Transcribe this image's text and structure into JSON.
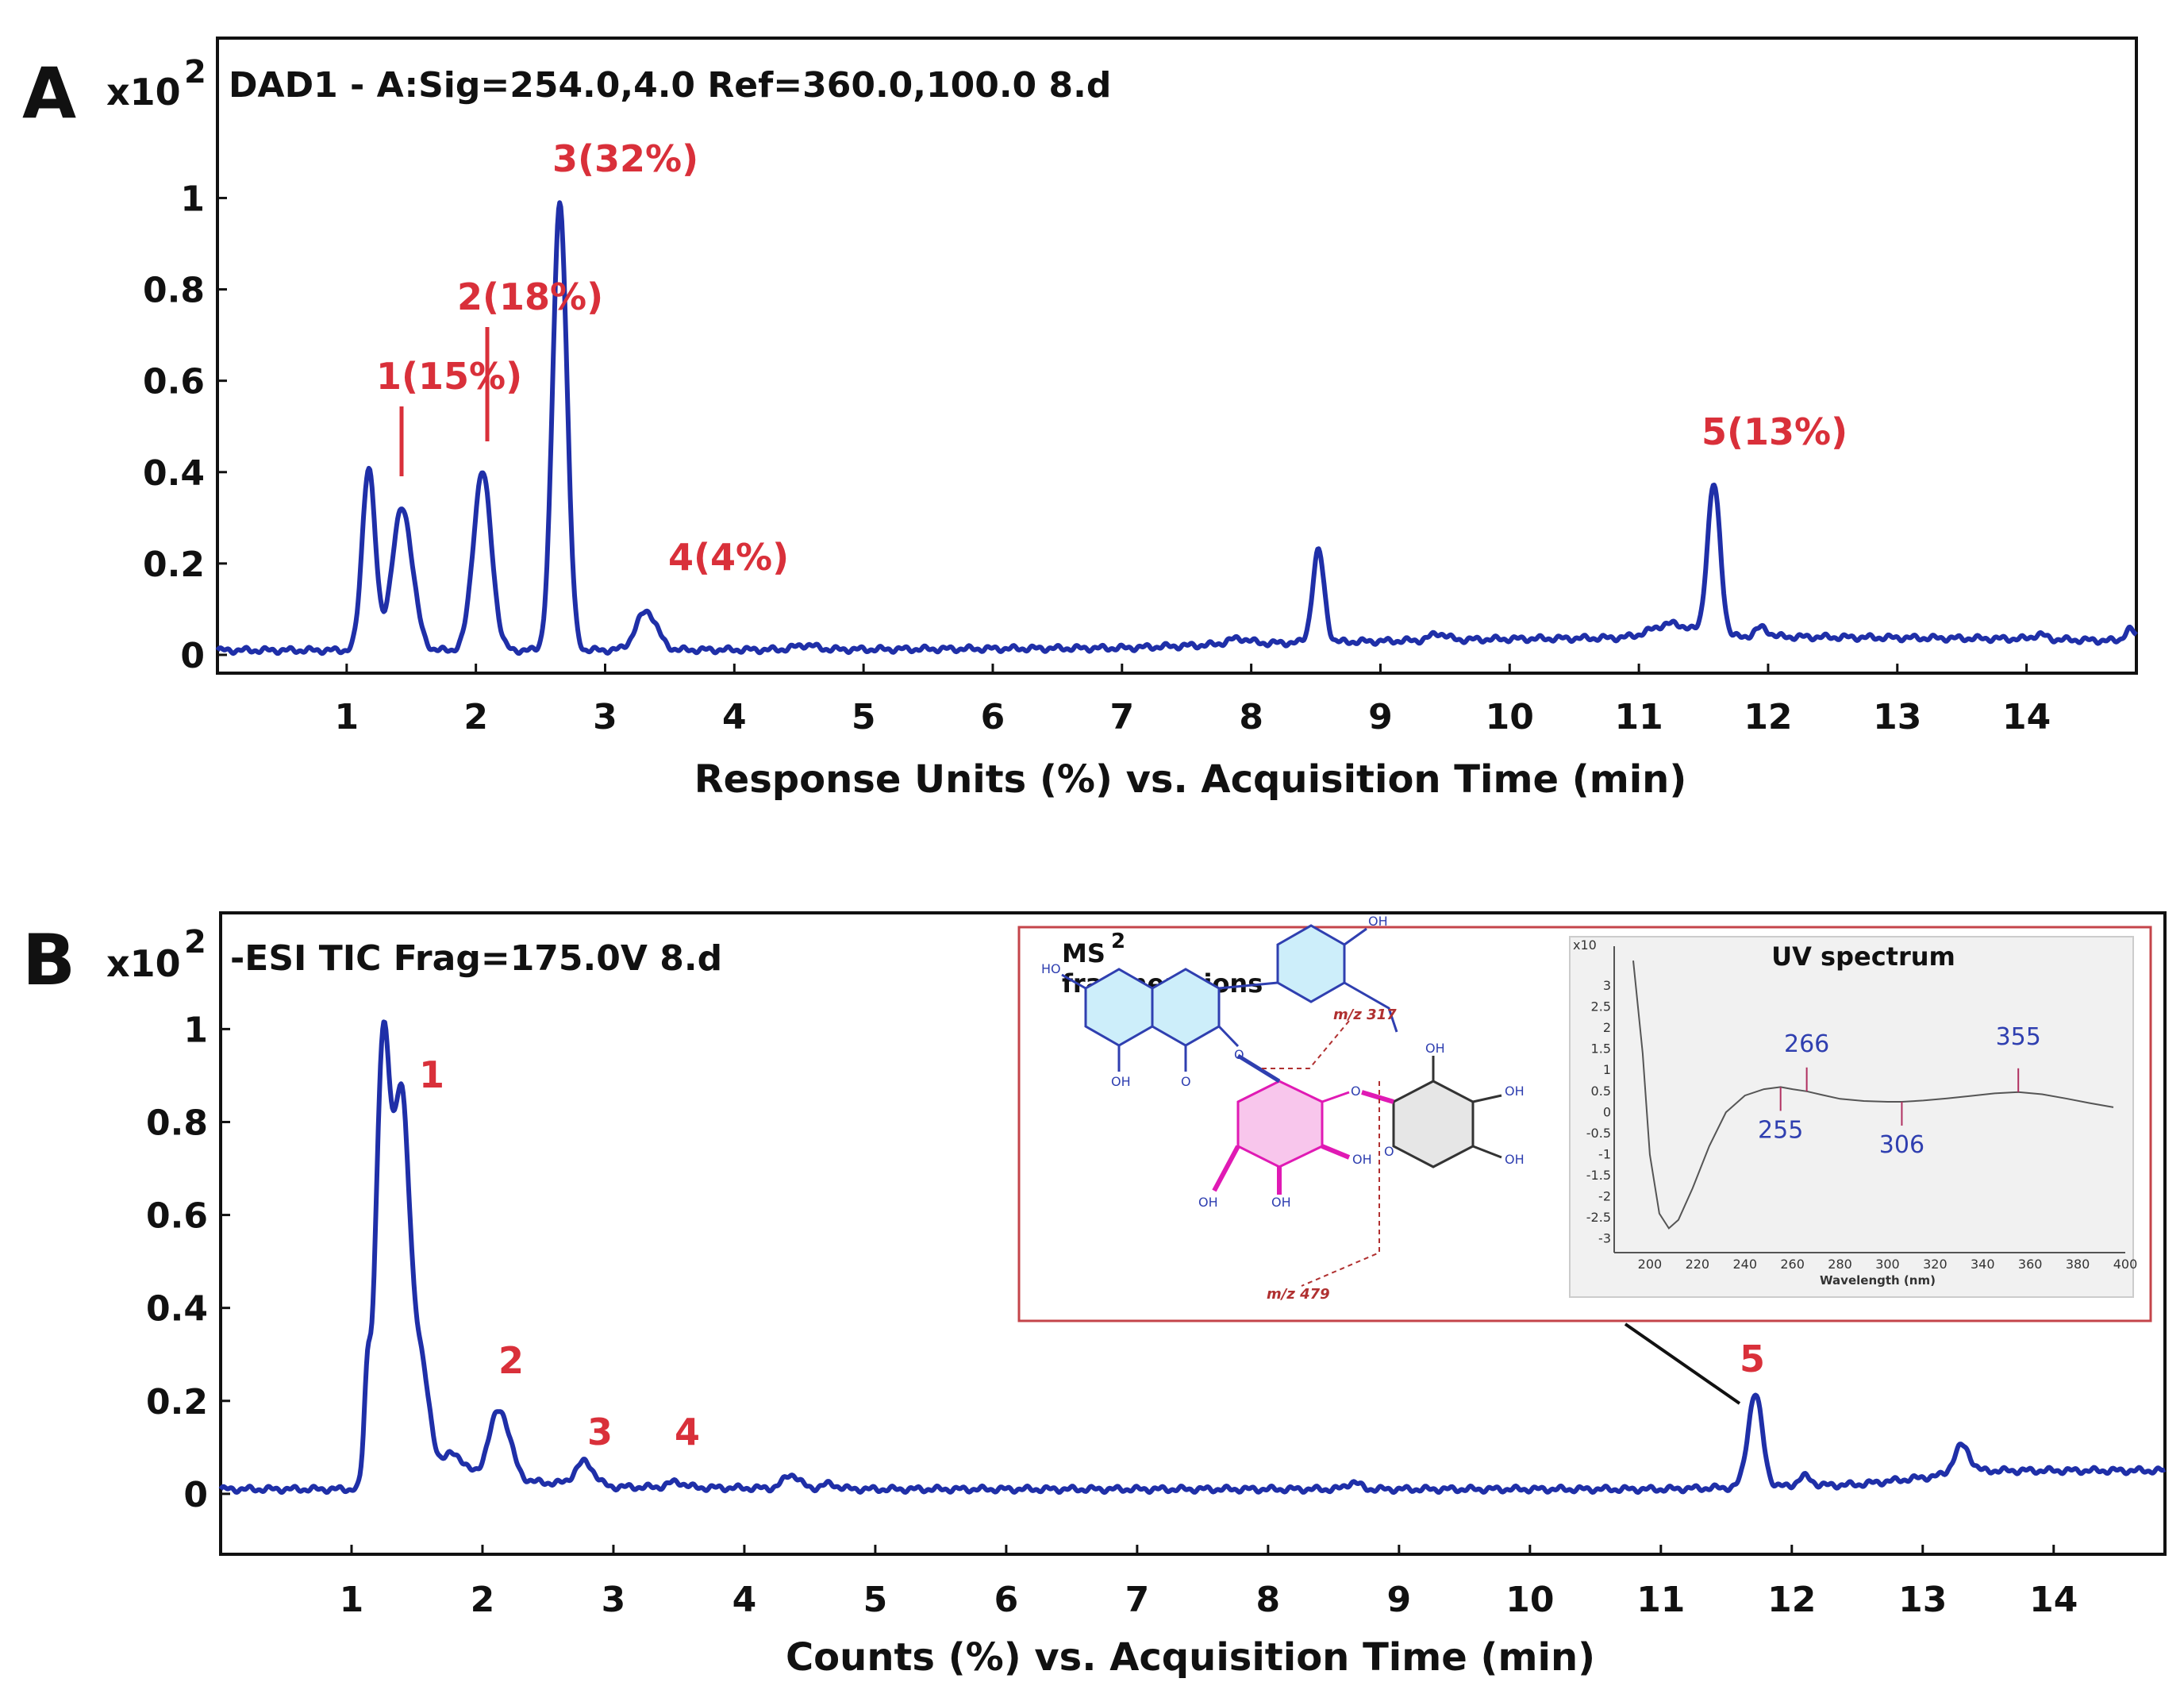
{
  "chart_data": [
    {
      "type": "line",
      "panel": "A",
      "title": "DAD1 - A:Sig=254.0,4.0  Ref=360.0,100.0 8.d",
      "scale_label": "x10",
      "scale_exponent": "2",
      "xlabel": "Response Units (%) vs. Acquisition Time (min)",
      "ylabel": "",
      "xlim": [
        0,
        14.85
      ],
      "ylim": [
        -0.04,
        1.35
      ],
      "x_ticks": [
        "1",
        "2",
        "3",
        "4",
        "5",
        "6",
        "7",
        "8",
        "9",
        "10",
        "11",
        "12",
        "13",
        "14"
      ],
      "y_ticks": [
        "0",
        "0.2",
        "0.4",
        "0.6",
        "0.8",
        "1"
      ],
      "y_tick_values": [
        0,
        0.2,
        0.4,
        0.6,
        0.8,
        1
      ],
      "baseline": {
        "x": [
          0,
          2.5,
          5,
          7,
          8,
          10,
          12,
          14,
          14.85
        ],
        "y": [
          0.01,
          0.01,
          0.012,
          0.015,
          0.025,
          0.035,
          0.04,
          0.035,
          0.03
        ]
      },
      "peaks": [
        {
          "x": 1.17,
          "h": 0.4,
          "w": 0.05
        },
        {
          "x": 1.43,
          "h": 0.31,
          "w": 0.08
        },
        {
          "x": 2.05,
          "h": 0.39,
          "w": 0.07
        },
        {
          "x": 2.65,
          "h": 0.98,
          "w": 0.055
        },
        {
          "x": 3.32,
          "h": 0.085,
          "w": 0.08
        },
        {
          "x": 4.55,
          "h": 0.01,
          "w": 0.08
        },
        {
          "x": 7.9,
          "h": 0.012,
          "w": 0.08
        },
        {
          "x": 8.52,
          "h": 0.2,
          "w": 0.045
        },
        {
          "x": 9.45,
          "h": 0.015,
          "w": 0.06
        },
        {
          "x": 11.25,
          "h": 0.03,
          "w": 0.15
        },
        {
          "x": 11.58,
          "h": 0.33,
          "w": 0.05
        },
        {
          "x": 11.95,
          "h": 0.02,
          "w": 0.05
        },
        {
          "x": 14.1,
          "h": 0.01,
          "w": 0.05
        },
        {
          "x": 14.8,
          "h": 0.025,
          "w": 0.04
        }
      ],
      "annotations": [
        {
          "label": "1(15%)",
          "x": 1.43
        },
        {
          "label": "2(18%)",
          "x": 2.05
        },
        {
          "label": "3(32%)",
          "x": 2.65
        },
        {
          "label": "4(4%)",
          "x": 3.32
        },
        {
          "label": "5(13%)",
          "x": 11.58
        }
      ]
    },
    {
      "type": "line",
      "panel": "B",
      "title": "-ESI TIC   Frag=175.0V 8.d",
      "scale_label": "x10",
      "scale_exponent": "2",
      "xlabel": "Counts (%) vs. Acquisition Time (min)",
      "ylabel": "",
      "xlim": [
        0,
        14.85
      ],
      "ylim": [
        -0.13,
        1.25
      ],
      "x_ticks": [
        "1",
        "2",
        "3",
        "4",
        "5",
        "6",
        "7",
        "8",
        "9",
        "10",
        "11",
        "12",
        "13",
        "14"
      ],
      "y_ticks": [
        "0",
        "0.2",
        "0.4",
        "0.6",
        "0.8",
        "1"
      ],
      "y_tick_values": [
        0,
        0.2,
        0.4,
        0.6,
        0.8,
        1
      ],
      "baseline": {
        "x": [
          0,
          1.0,
          1.6,
          3.0,
          5.0,
          8.0,
          11.0,
          12.5,
          13.5,
          14.85
        ],
        "y": [
          0.01,
          0.01,
          0.04,
          0.015,
          0.01,
          0.01,
          0.01,
          0.02,
          0.05,
          0.05
        ]
      },
      "peaks": [
        {
          "x": 1.12,
          "h": 0.2,
          "w": 0.025
        },
        {
          "x": 1.24,
          "h": 0.93,
          "w": 0.055
        },
        {
          "x": 1.38,
          "h": 0.78,
          "w": 0.06
        },
        {
          "x": 1.52,
          "h": 0.25,
          "w": 0.07
        },
        {
          "x": 1.78,
          "h": 0.05,
          "w": 0.08
        },
        {
          "x": 2.13,
          "h": 0.15,
          "w": 0.08
        },
        {
          "x": 2.78,
          "h": 0.05,
          "w": 0.07
        },
        {
          "x": 3.48,
          "h": 0.012,
          "w": 0.06
        },
        {
          "x": 4.36,
          "h": 0.03,
          "w": 0.06
        },
        {
          "x": 4.65,
          "h": 0.01,
          "w": 0.06
        },
        {
          "x": 8.65,
          "h": 0.015,
          "w": 0.05
        },
        {
          "x": 11.72,
          "h": 0.2,
          "w": 0.055
        },
        {
          "x": 12.1,
          "h": 0.02,
          "w": 0.05
        },
        {
          "x": 13.3,
          "h": 0.06,
          "w": 0.06
        }
      ],
      "annotations": [
        {
          "label": "1",
          "x": 1.45
        },
        {
          "label": "2",
          "x": 2.13
        },
        {
          "label": "3",
          "x": 2.8
        },
        {
          "label": "4",
          "x": 3.48
        },
        {
          "label": "5",
          "x": 11.72
        }
      ],
      "inset": {
        "ms_label": "MS",
        "ms_sup": "2",
        "ms_sub": "fragment ions",
        "fragments": [
          "m/z 317",
          "m/z 479"
        ],
        "uv_title": "UV spectrum",
        "uv_xlabel": "Wavelength (nm)",
        "uv_axis_scale": "x10",
        "uv_x_ticks": [
          "200",
          "220",
          "240",
          "260",
          "280",
          "300",
          "320",
          "340",
          "360",
          "380",
          "400"
        ],
        "uv_y_ticks": [
          "3",
          "2.5",
          "2",
          "1.5",
          "1",
          "0.5",
          "0",
          "-0.5",
          "-1",
          "-1.5",
          "-2",
          "-2.5",
          "-3"
        ],
        "uv_spectrum": {
          "wavelength": [
            193,
            197,
            200,
            204,
            208,
            212,
            218,
            225,
            232,
            240,
            248,
            255,
            260,
            266,
            272,
            280,
            290,
            300,
            306,
            315,
            325,
            335,
            345,
            355,
            365,
            375,
            385,
            395
          ],
          "value": [
            3.6,
            1.4,
            -1.0,
            -2.4,
            -2.75,
            -2.55,
            -1.8,
            -0.8,
            0.0,
            0.4,
            0.55,
            0.6,
            0.55,
            0.5,
            0.42,
            0.32,
            0.27,
            0.25,
            0.25,
            0.28,
            0.33,
            0.39,
            0.45,
            0.48,
            0.43,
            0.33,
            0.22,
            0.12
          ]
        },
        "uv_peaks": [
          {
            "label": "266",
            "x": 266
          },
          {
            "label": "255",
            "x": 255
          },
          {
            "label": "306",
            "x": 306
          },
          {
            "label": "355",
            "x": 355
          }
        ]
      }
    }
  ]
}
